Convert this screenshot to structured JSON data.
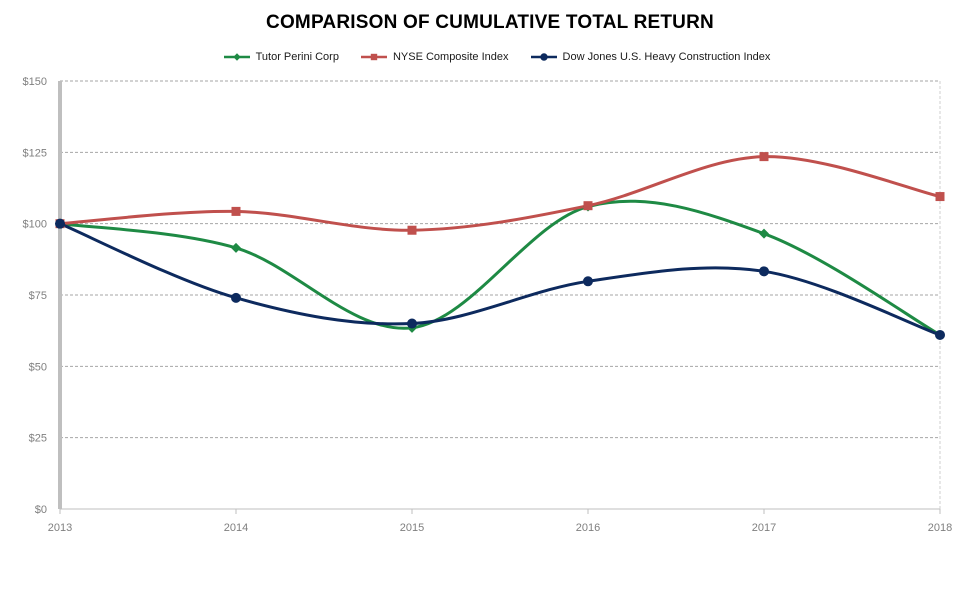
{
  "chart_data": {
    "type": "line",
    "title": "COMPARISON OF CUMULATIVE TOTAL RETURN",
    "xlabel": "",
    "ylabel": "",
    "x": [
      "2013",
      "2014",
      "2015",
      "2016",
      "2017",
      "2018"
    ],
    "ylim": [
      0,
      150
    ],
    "yticks": [
      {
        "value": 0,
        "label": "$0"
      },
      {
        "value": 25,
        "label": "$25"
      },
      {
        "value": 50,
        "label": "$50"
      },
      {
        "value": 75,
        "label": "$75"
      },
      {
        "value": 100,
        "label": "$100"
      },
      {
        "value": 125,
        "label": "$125"
      },
      {
        "value": 150,
        "label": "$150"
      }
    ],
    "grid": "horizontal dashed",
    "legend_position": "top",
    "series": [
      {
        "name": "Tutor Perini Corp",
        "color": "#1e8a44",
        "marker": "diamond",
        "values": [
          100,
          91.5,
          63.5,
          106,
          96.5,
          61
        ]
      },
      {
        "name": "NYSE Composite Index",
        "color": "#c0504d",
        "marker": "square",
        "values": [
          100,
          104.3,
          97.7,
          106.3,
          123.5,
          109.5
        ]
      },
      {
        "name": "Dow Jones U.S. Heavy Construction Index",
        "color": "#0d2a5e",
        "marker": "circle",
        "values": [
          100,
          74,
          65,
          79.8,
          83.3,
          61
        ]
      }
    ]
  }
}
